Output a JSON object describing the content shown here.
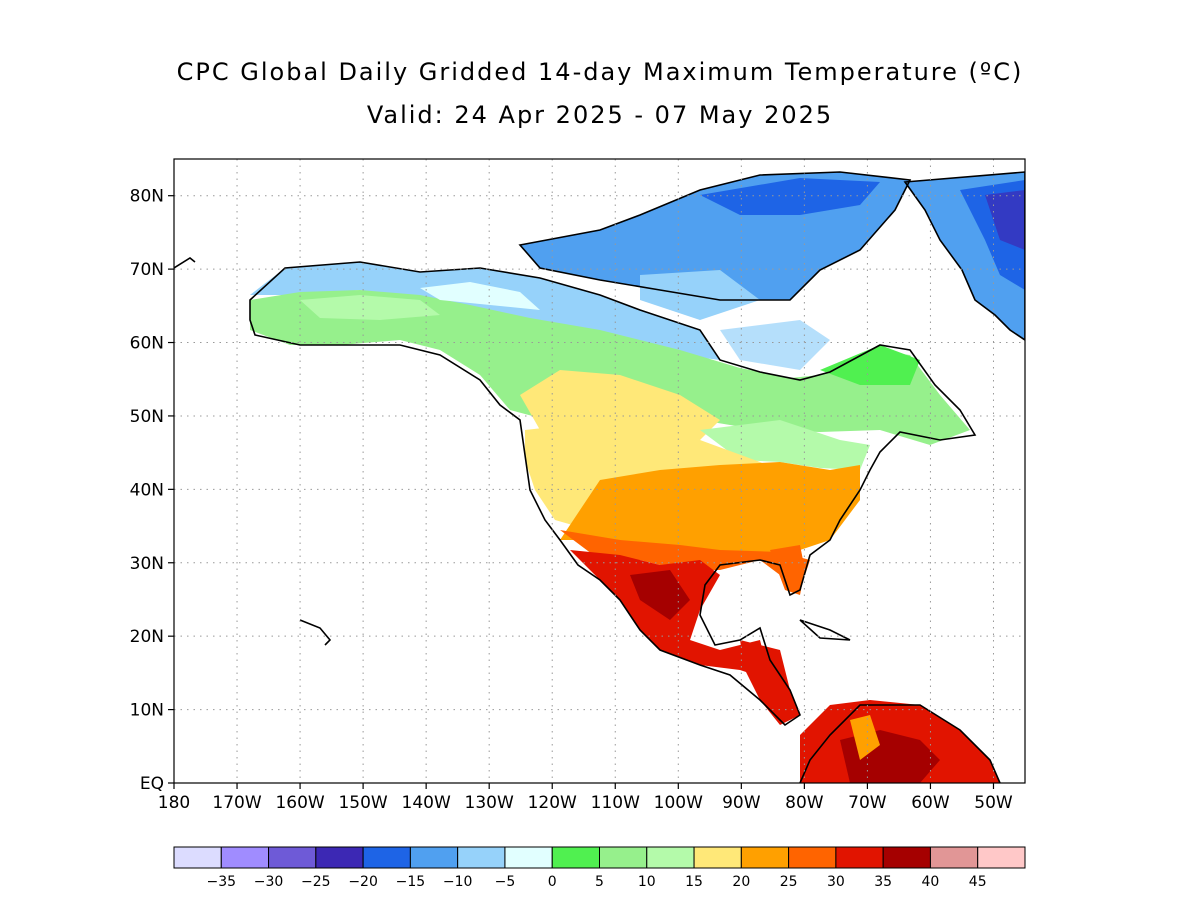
{
  "title": {
    "line1": "CPC Global Daily Gridded 14-day Maximum Temperature (ºC)",
    "line2": "Valid: 24 Apr 2025 - 07 May 2025"
  },
  "map": {
    "lon_range": [
      -180,
      -45
    ],
    "lat_range": [
      0,
      85
    ],
    "gridlines": "dotted",
    "lon_ticks": [
      {
        "lon": -180,
        "label": "180"
      },
      {
        "lon": -170,
        "label": "170W"
      },
      {
        "lon": -160,
        "label": "160W"
      },
      {
        "lon": -150,
        "label": "150W"
      },
      {
        "lon": -140,
        "label": "140W"
      },
      {
        "lon": -130,
        "label": "130W"
      },
      {
        "lon": -120,
        "label": "120W"
      },
      {
        "lon": -110,
        "label": "110W"
      },
      {
        "lon": -100,
        "label": "100W"
      },
      {
        "lon": -90,
        "label": "90W"
      },
      {
        "lon": -80,
        "label": "80W"
      },
      {
        "lon": -70,
        "label": "70W"
      },
      {
        "lon": -60,
        "label": "60W"
      },
      {
        "lon": -50,
        "label": "50W"
      }
    ],
    "lat_ticks": [
      {
        "lat": 0,
        "label": "EQ"
      },
      {
        "lat": 10,
        "label": "10N"
      },
      {
        "lat": 20,
        "label": "20N"
      },
      {
        "lat": 30,
        "label": "30N"
      },
      {
        "lat": 40,
        "label": "40N"
      },
      {
        "lat": 50,
        "label": "50N"
      },
      {
        "lat": 60,
        "label": "60N"
      },
      {
        "lat": 70,
        "label": "70N"
      },
      {
        "lat": 80,
        "label": "80N"
      }
    ]
  },
  "colorbar": {
    "colors": [
      "#dcdcff",
      "#a08cff",
      "#6e5ad7",
      "#3c28b4",
      "#1e64e6",
      "#50a0f0",
      "#96d2fa",
      "#e1ffff",
      "#50f050",
      "#96f08c",
      "#b4faaa",
      "#ffe878",
      "#ffa000",
      "#ff6400",
      "#e11400",
      "#a50000",
      "#e19696",
      "#ffc8c8"
    ],
    "labels": [
      "-35",
      "-30",
      "-25",
      "-20",
      "-15",
      "-10",
      "-5",
      "0",
      "5",
      "10",
      "15",
      "20",
      "25",
      "30",
      "35",
      "40",
      "45"
    ]
  }
}
